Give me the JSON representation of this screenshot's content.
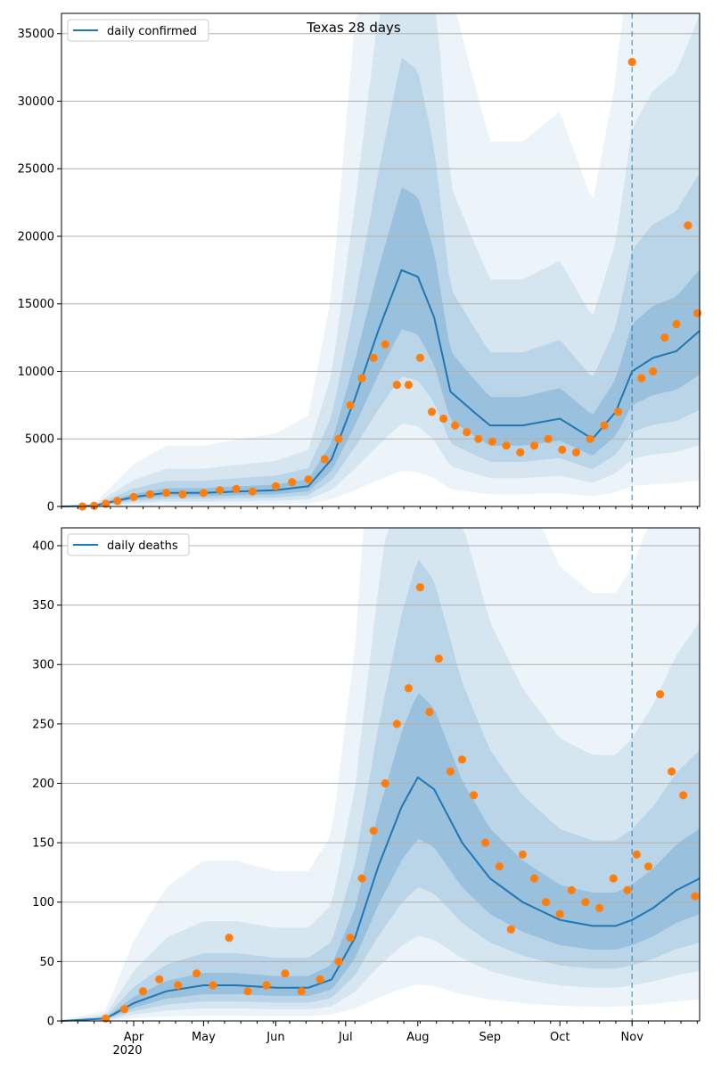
{
  "colors": {
    "model": "#1f77b4",
    "observed": "#ff7f0e",
    "band": "#1f77b4",
    "grid": "#b0b0b0",
    "vline": "#1f77b4"
  },
  "chart_data": [
    {
      "type": "line",
      "title": "Texas 28 days",
      "xlabel": "",
      "ylabel": "",
      "xlim": [
        "2020-03-01",
        "2020-11-30"
      ],
      "ylim": [
        0,
        36500
      ],
      "yticks": [
        0,
        5000,
        10000,
        15000,
        20000,
        25000,
        30000,
        35000
      ],
      "xticks": [],
      "grid": "horizontal",
      "legend": "top-left",
      "legend_entries": [
        "daily confirmed"
      ],
      "vline_date": "2020-11-01",
      "model_series": {
        "name": "daily confirmed",
        "dates": [
          "2020-03-01",
          "2020-03-15",
          "2020-04-01",
          "2020-04-15",
          "2020-05-01",
          "2020-05-15",
          "2020-06-01",
          "2020-06-15",
          "2020-06-25",
          "2020-07-05",
          "2020-07-15",
          "2020-07-25",
          "2020-08-01",
          "2020-08-08",
          "2020-08-15",
          "2020-08-25",
          "2020-09-01",
          "2020-09-15",
          "2020-10-01",
          "2020-10-15",
          "2020-10-25",
          "2020-11-01",
          "2020-11-10",
          "2020-11-20",
          "2020-11-30"
        ],
        "values": [
          0,
          50,
          700,
          1000,
          1000,
          1100,
          1200,
          1500,
          3500,
          8000,
          13000,
          17500,
          17000,
          14000,
          8500,
          7000,
          6000,
          6000,
          6500,
          5000,
          7000,
          10000,
          11000,
          11500,
          13000
        ]
      },
      "observed_series": {
        "dates": [
          "2020-03-10",
          "2020-03-15",
          "2020-03-20",
          "2020-03-25",
          "2020-04-01",
          "2020-04-08",
          "2020-04-15",
          "2020-04-22",
          "2020-05-01",
          "2020-05-08",
          "2020-05-15",
          "2020-05-22",
          "2020-06-01",
          "2020-06-08",
          "2020-06-15",
          "2020-06-22",
          "2020-06-28",
          "2020-07-03",
          "2020-07-08",
          "2020-07-13",
          "2020-07-18",
          "2020-07-23",
          "2020-07-28",
          "2020-08-02",
          "2020-08-07",
          "2020-08-12",
          "2020-08-17",
          "2020-08-22",
          "2020-08-27",
          "2020-09-02",
          "2020-09-08",
          "2020-09-14",
          "2020-09-20",
          "2020-09-26",
          "2020-10-02",
          "2020-10-08",
          "2020-10-14",
          "2020-10-20",
          "2020-10-26",
          "2020-11-01",
          "2020-11-05",
          "2020-11-10",
          "2020-11-15",
          "2020-11-20",
          "2020-11-25",
          "2020-11-29"
        ],
        "values": [
          0,
          50,
          200,
          400,
          700,
          900,
          1000,
          900,
          1000,
          1200,
          1300,
          1100,
          1500,
          1800,
          2000,
          3500,
          5000,
          7500,
          9500,
          11000,
          12000,
          9000,
          9000,
          11000,
          7000,
          6500,
          6000,
          5500,
          5000,
          4800,
          4500,
          4000,
          4500,
          5000,
          4200,
          4000,
          5000,
          6000,
          7000,
          32900,
          9500,
          10000,
          12500,
          13500,
          20800,
          14300
        ]
      }
    },
    {
      "type": "line",
      "title": "",
      "xlabel": "",
      "ylabel": "",
      "xlim": [
        "2020-03-01",
        "2020-11-30"
      ],
      "ylim": [
        0,
        415
      ],
      "yticks": [
        0,
        50,
        100,
        150,
        200,
        250,
        300,
        350,
        400
      ],
      "xticks": [
        "Apr",
        "May",
        "Jun",
        "Jul",
        "Aug",
        "Sep",
        "Oct",
        "Nov"
      ],
      "xtick_dates": [
        "2020-04-01",
        "2020-05-01",
        "2020-06-01",
        "2020-07-01",
        "2020-08-01",
        "2020-09-01",
        "2020-10-01",
        "2020-11-01"
      ],
      "year_label": "2020",
      "grid": "horizontal",
      "legend": "top-left",
      "legend_entries": [
        "daily deaths"
      ],
      "vline_date": "2020-11-01",
      "model_series": {
        "name": "daily deaths",
        "dates": [
          "2020-03-01",
          "2020-03-20",
          "2020-04-01",
          "2020-04-15",
          "2020-05-01",
          "2020-05-15",
          "2020-06-01",
          "2020-06-15",
          "2020-06-25",
          "2020-07-05",
          "2020-07-15",
          "2020-07-25",
          "2020-08-01",
          "2020-08-08",
          "2020-08-20",
          "2020-09-01",
          "2020-09-15",
          "2020-10-01",
          "2020-10-15",
          "2020-10-25",
          "2020-11-01",
          "2020-11-10",
          "2020-11-20",
          "2020-11-30"
        ],
        "values": [
          0,
          2,
          15,
          25,
          30,
          30,
          28,
          28,
          35,
          70,
          130,
          180,
          205,
          195,
          150,
          120,
          100,
          85,
          80,
          80,
          85,
          95,
          110,
          120
        ]
      },
      "observed_series": {
        "dates": [
          "2020-03-20",
          "2020-03-28",
          "2020-04-05",
          "2020-04-12",
          "2020-04-20",
          "2020-04-28",
          "2020-05-05",
          "2020-05-12",
          "2020-05-20",
          "2020-05-28",
          "2020-06-05",
          "2020-06-12",
          "2020-06-20",
          "2020-06-28",
          "2020-07-03",
          "2020-07-08",
          "2020-07-13",
          "2020-07-18",
          "2020-07-23",
          "2020-07-28",
          "2020-08-02",
          "2020-08-06",
          "2020-08-10",
          "2020-08-15",
          "2020-08-20",
          "2020-08-25",
          "2020-08-30",
          "2020-09-05",
          "2020-09-10",
          "2020-09-15",
          "2020-09-20",
          "2020-09-25",
          "2020-10-01",
          "2020-10-06",
          "2020-10-12",
          "2020-10-18",
          "2020-10-24",
          "2020-10-30",
          "2020-11-03",
          "2020-11-08",
          "2020-11-13",
          "2020-11-18",
          "2020-11-23",
          "2020-11-28"
        ],
        "values": [
          2,
          10,
          25,
          35,
          30,
          40,
          30,
          70,
          25,
          30,
          40,
          25,
          35,
          50,
          70,
          120,
          160,
          200,
          250,
          280,
          365,
          260,
          305,
          210,
          220,
          190,
          150,
          130,
          77,
          140,
          120,
          100,
          90,
          110,
          100,
          95,
          120,
          110,
          140,
          130,
          275,
          210,
          190,
          105
        ]
      }
    }
  ]
}
